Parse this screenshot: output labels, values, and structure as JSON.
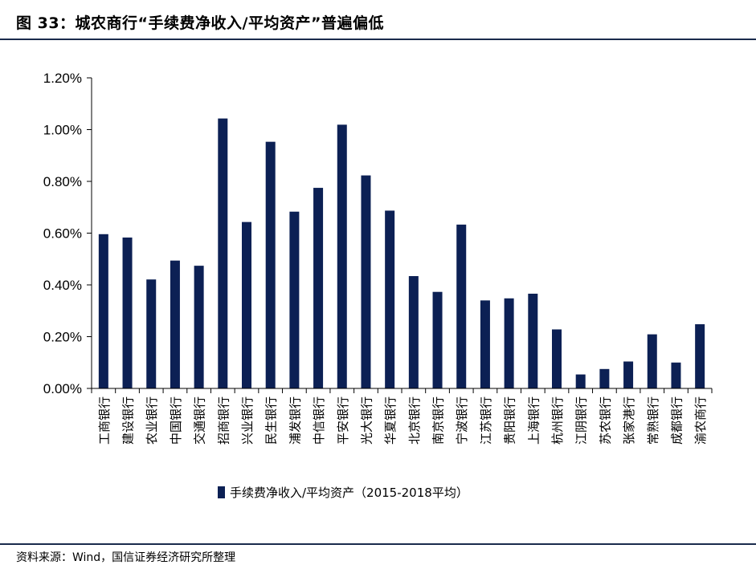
{
  "figure": {
    "title": "图 33：城农商行“手续费净收入/平均资产”普遍偏低",
    "source": "资料来源：Wind，国信证券经济研究所整理"
  },
  "colors": {
    "bar": "#0c2054",
    "rule": "#1a2b4c",
    "axis": "#000000"
  },
  "chart_data": {
    "type": "bar",
    "title": "城农商行“手续费净收入/平均资产”普遍偏低",
    "categories": [
      "工商银行",
      "建设银行",
      "农业银行",
      "中国银行",
      "交通银行",
      "招商银行",
      "兴业银行",
      "民生银行",
      "浦发银行",
      "中信银行",
      "平安银行",
      "光大银行",
      "华夏银行",
      "北京银行",
      "南京银行",
      "宁波银行",
      "江苏银行",
      "贵阳银行",
      "上海银行",
      "杭州银行",
      "江阴银行",
      "苏农银行",
      "张家港行",
      "常熟银行",
      "成都银行",
      "渝农商行"
    ],
    "series": [
      {
        "name": "手续费净收入/平均资产（2015-2018平均）",
        "values": [
          0.596,
          0.583,
          0.421,
          0.494,
          0.474,
          1.043,
          0.643,
          0.953,
          0.683,
          0.775,
          1.019,
          0.823,
          0.687,
          0.434,
          0.373,
          0.633,
          0.34,
          0.348,
          0.366,
          0.228,
          0.054,
          0.075,
          0.104,
          0.209,
          0.1,
          0.248
        ]
      }
    ],
    "unit": "%",
    "ylim": [
      0,
      1.2
    ],
    "yticks": [
      0,
      0.2,
      0.4,
      0.6,
      0.8,
      1.0,
      1.2
    ],
    "ytick_labels": [
      "0.00%",
      "0.20%",
      "0.40%",
      "0.60%",
      "0.80%",
      "1.00%",
      "1.20%"
    ],
    "legend": {
      "position": "bottom",
      "label": "手续费净收入/平均资产（2015-2018平均）"
    },
    "grid": false
  }
}
